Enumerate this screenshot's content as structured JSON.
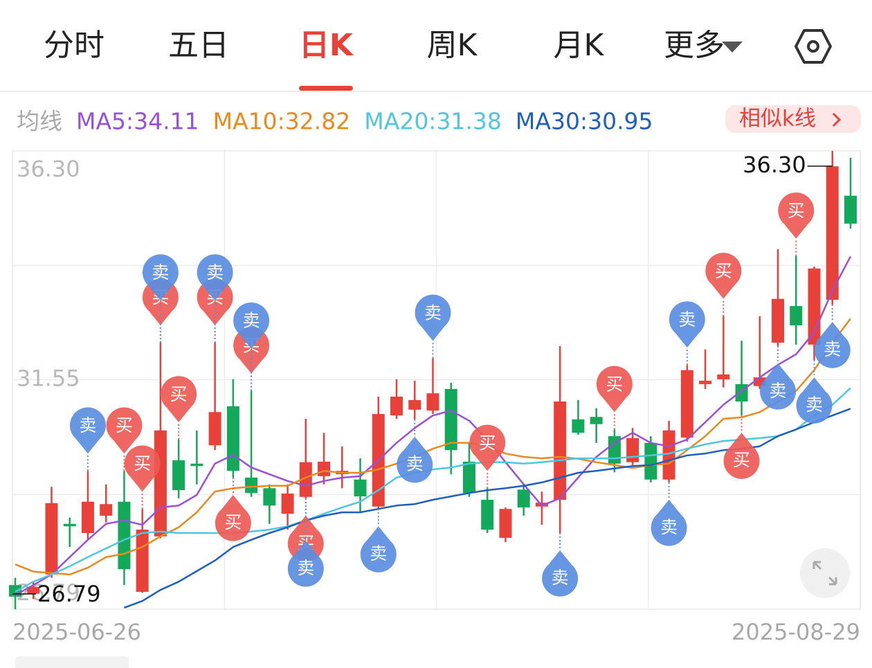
{
  "tabs": {
    "items": [
      "分时",
      "五日",
      "日K",
      "周K",
      "月K",
      "更多"
    ],
    "active": "日K"
  },
  "similar_button": "相似k线",
  "chart_data": {
    "type": "candlestick",
    "legend_title": "均线",
    "ylim": [
      26.79,
      36.3
    ],
    "yticks": [
      {
        "value": 26.79,
        "label": "26.79"
      },
      {
        "value": 31.55,
        "label": "31.55"
      },
      {
        "value": 36.3,
        "label": "36.30"
      }
    ],
    "start_date": "2025-06-26",
    "end_date": "2025-08-29",
    "up_color": "#e8413a",
    "down_color": "#14a85a",
    "grid": true,
    "open": [
      27.29,
      27.11,
      27.51,
      28.56,
      28.37,
      28.73,
      29.02,
      27.15,
      28.3,
      29.88,
      29.81,
      30.19,
      31.0,
      29.52,
      29.3,
      28.77,
      29.12,
      29.55,
      29.59,
      29.48,
      28.92,
      30.81,
      30.93,
      30.91,
      31.36,
      29.85,
      29.06,
      28.27,
      29.27,
      28.92,
      29.06,
      30.73,
      30.78,
      30.38,
      29.84,
      30.24,
      29.48,
      30.35,
      31.46,
      31.56,
      31.46,
      31.42,
      32.32,
      33.08,
      32.28,
      33.21,
      35.37
    ],
    "high": [
      27.44,
      27.36,
      29.33,
      28.69,
      29.66,
      29.38,
      29.66,
      28.87,
      32.32,
      30.31,
      30.5,
      32.32,
      31.56,
      31.32,
      29.38,
      29.38,
      30.74,
      30.45,
      30.17,
      29.92,
      31.2,
      31.56,
      31.53,
      32.0,
      31.49,
      30.24,
      29.3,
      28.9,
      29.38,
      29.23,
      32.25,
      31.13,
      30.96,
      30.52,
      30.55,
      30.38,
      30.7,
      31.86,
      32.18,
      32.87,
      32.36,
      32.87,
      34.26,
      34.12,
      33.9,
      36.3,
      36.16
    ],
    "low": [
      26.79,
      27.0,
      27.44,
      28.08,
      28.23,
      28.59,
      27.29,
      27.13,
      28.26,
      29.09,
      29.38,
      30.09,
      29.52,
      29.12,
      28.56,
      28.44,
      29.09,
      29.38,
      29.3,
      28.8,
      28.87,
      30.74,
      30.73,
      30.84,
      29.59,
      29.12,
      28.37,
      28.18,
      28.73,
      28.54,
      28.37,
      30.41,
      30.24,
      29.63,
      29.78,
      29.42,
      29.42,
      30.27,
      31.36,
      31.39,
      30.81,
      31.36,
      32.25,
      32.28,
      31.96,
      33.11,
      34.69
    ],
    "close": [
      27.05,
      27.25,
      28.99,
      28.51,
      29.02,
      28.97,
      27.62,
      28.44,
      30.5,
      29.26,
      29.76,
      30.88,
      29.66,
      29.2,
      28.94,
      29.19,
      29.84,
      29.85,
      29.66,
      29.13,
      30.84,
      31.2,
      31.13,
      31.27,
      30.09,
      29.2,
      28.44,
      28.87,
      28.9,
      29.0,
      31.1,
      30.45,
      30.63,
      29.81,
      30.34,
      29.48,
      30.5,
      31.75,
      31.53,
      31.66,
      31.1,
      31.6,
      33.23,
      32.68,
      33.86,
      35.98,
      34.79
    ],
    "series": [
      {
        "name": "MA5:34.11",
        "color": "#9b4fd8",
        "values": [
          27.08,
          27.29,
          27.51,
          27.87,
          28.23,
          28.56,
          28.63,
          28.54,
          28.9,
          28.94,
          29.16,
          29.81,
          29.99,
          29.73,
          29.59,
          29.45,
          29.35,
          29.45,
          29.52,
          29.55,
          29.88,
          30.24,
          30.55,
          30.81,
          30.91,
          30.7,
          30.31,
          29.84,
          29.38,
          28.94,
          29.09,
          29.52,
          29.95,
          30.24,
          30.45,
          30.24,
          30.17,
          30.31,
          30.67,
          31.03,
          31.32,
          31.6,
          31.86,
          32.08,
          32.54,
          33.4,
          34.11
        ]
      },
      {
        "name": "MA10:32.82",
        "color": "#e98a1f",
        "values": [
          27.72,
          27.57,
          27.54,
          27.51,
          27.65,
          27.87,
          27.94,
          28.08,
          28.3,
          28.49,
          28.8,
          29.23,
          29.3,
          29.33,
          29.35,
          29.35,
          29.52,
          29.66,
          29.62,
          29.62,
          29.69,
          29.81,
          29.95,
          30.12,
          30.24,
          30.24,
          30.17,
          30.02,
          29.95,
          29.92,
          29.95,
          29.91,
          29.84,
          29.78,
          29.72,
          29.78,
          29.81,
          30.09,
          30.38,
          30.74,
          30.77,
          30.88,
          31.1,
          31.32,
          31.75,
          32.32,
          32.82
        ]
      },
      {
        "name": "MA20:31.38",
        "color": "#4fc6e0",
        "values": [
          27.15,
          27.36,
          27.51,
          27.68,
          27.87,
          28.05,
          28.23,
          28.37,
          28.4,
          28.37,
          28.37,
          28.37,
          28.37,
          28.4,
          28.44,
          28.51,
          28.63,
          28.77,
          28.9,
          29.02,
          29.26,
          29.52,
          29.62,
          29.69,
          29.73,
          29.81,
          29.84,
          29.84,
          29.81,
          29.84,
          29.88,
          29.92,
          29.92,
          29.92,
          29.95,
          29.98,
          30.02,
          30.12,
          30.21,
          30.28,
          30.31,
          30.34,
          30.38,
          30.52,
          30.81,
          31.03,
          31.38
        ]
      },
      {
        "name": "MA30:30.95",
        "color": "#1d5fbf",
        "values": [
          null,
          null,
          null,
          null,
          null,
          null,
          26.82,
          26.96,
          27.19,
          27.36,
          27.58,
          27.8,
          28.08,
          28.23,
          28.37,
          28.49,
          28.63,
          28.73,
          28.8,
          28.8,
          28.87,
          28.94,
          28.97,
          29.06,
          29.13,
          29.2,
          29.26,
          29.3,
          29.35,
          29.42,
          29.52,
          29.62,
          29.66,
          29.71,
          29.76,
          29.78,
          29.88,
          29.98,
          30.02,
          30.09,
          30.12,
          30.17,
          30.38,
          30.52,
          30.67,
          30.81,
          30.95
        ]
      }
    ],
    "buy_color": "#ee5a55",
    "sell_color": "#5a8de0",
    "signals_above": [
      null,
      null,
      null,
      null,
      [
        "卖"
      ],
      null,
      [
        "买"
      ],
      [
        "买"
      ],
      [
        "买",
        "卖"
      ],
      [
        "买"
      ],
      null,
      [
        "买",
        "卖"
      ],
      null,
      [
        "买",
        "卖"
      ],
      null,
      null,
      null,
      null,
      null,
      null,
      null,
      null,
      null,
      [
        "卖"
      ],
      null,
      null,
      [
        "买"
      ],
      null,
      null,
      null,
      null,
      null,
      null,
      [
        "买"
      ],
      null,
      null,
      null,
      [
        "卖"
      ],
      null,
      [
        "买"
      ],
      null,
      null,
      null,
      [
        "买"
      ],
      null,
      null,
      null
    ],
    "signals_below": [
      null,
      null,
      null,
      null,
      null,
      null,
      null,
      null,
      null,
      null,
      null,
      null,
      [
        "买"
      ],
      null,
      null,
      null,
      [
        "买",
        "卖"
      ],
      null,
      null,
      null,
      [
        "卖"
      ],
      null,
      [
        "卖"
      ],
      null,
      null,
      null,
      null,
      null,
      null,
      null,
      [
        "卖"
      ],
      null,
      null,
      null,
      null,
      null,
      [
        "卖"
      ],
      null,
      null,
      null,
      [
        "买"
      ],
      null,
      [
        "卖"
      ],
      null,
      [
        "卖"
      ],
      [
        "卖"
      ],
      null
    ]
  }
}
